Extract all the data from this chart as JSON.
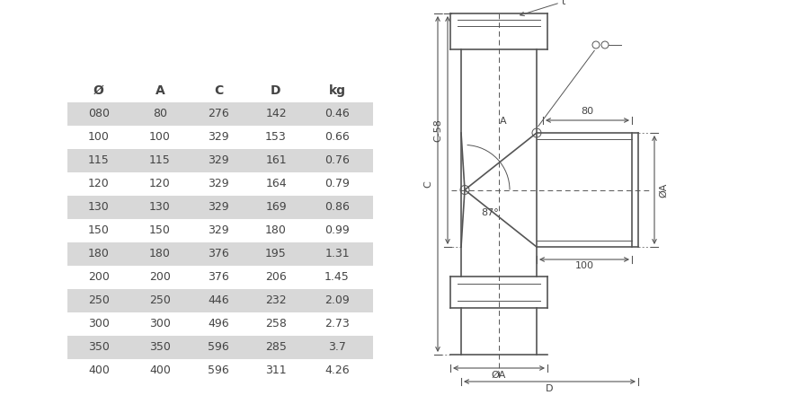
{
  "table_headers": [
    "Ø",
    "A",
    "C",
    "D",
    "kg"
  ],
  "table_rows": [
    [
      "080",
      "80",
      "276",
      "142",
      "0.46"
    ],
    [
      "100",
      "100",
      "329",
      "153",
      "0.66"
    ],
    [
      "115",
      "115",
      "329",
      "161",
      "0.76"
    ],
    [
      "120",
      "120",
      "329",
      "164",
      "0.79"
    ],
    [
      "130",
      "130",
      "329",
      "169",
      "0.86"
    ],
    [
      "150",
      "150",
      "329",
      "180",
      "0.99"
    ],
    [
      "180",
      "180",
      "376",
      "195",
      "1.31"
    ],
    [
      "200",
      "200",
      "376",
      "206",
      "1.45"
    ],
    [
      "250",
      "250",
      "446",
      "232",
      "2.09"
    ],
    [
      "300",
      "300",
      "496",
      "258",
      "2.73"
    ],
    [
      "350",
      "350",
      "596",
      "285",
      "3.7"
    ],
    [
      "400",
      "400",
      "596",
      "311",
      "4.26"
    ]
  ],
  "shaded_rows": [
    0,
    2,
    4,
    6,
    8,
    10
  ],
  "bg_color": "#ffffff",
  "table_bg": "#d8d8d8",
  "line_color": "#555555",
  "text_color": "#444444"
}
